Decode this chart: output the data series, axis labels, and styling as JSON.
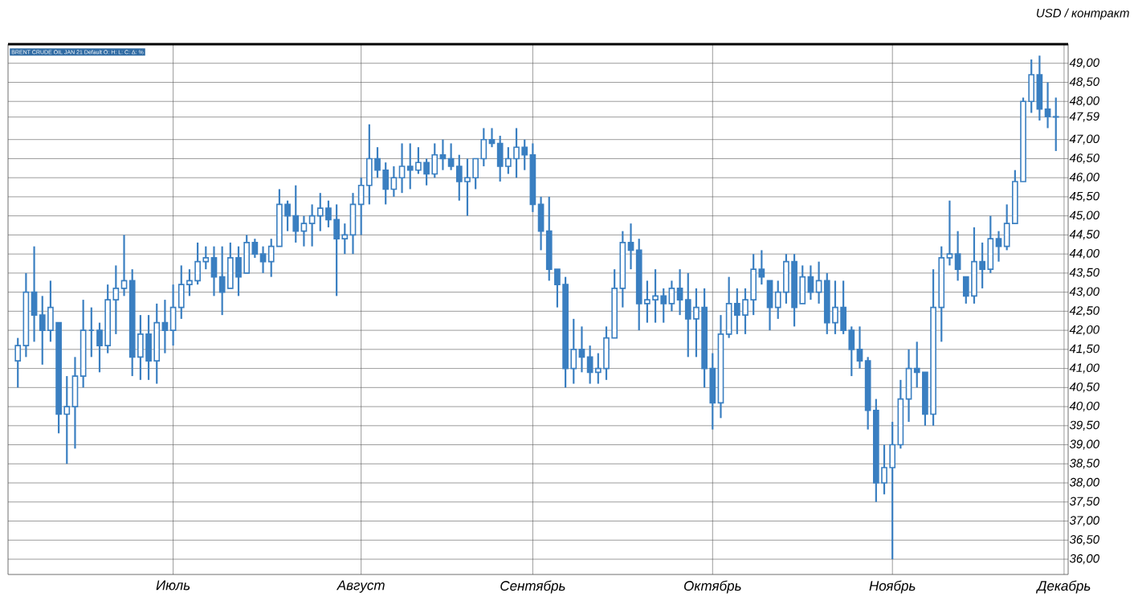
{
  "chart_data": {
    "type": "candlestick",
    "ylabel": "USD / контракт",
    "annotations": [
      "BRENT CRUDE OIL JAN 21 Default O: H: L: C: Δ: %"
    ],
    "color": "#3a7fc1",
    "grid": true,
    "categories": [
      null,
      null,
      null,
      null,
      null,
      null,
      null,
      null,
      null,
      null,
      null,
      null,
      null,
      null,
      null,
      null,
      null,
      null,
      null,
      "Июль",
      null,
      null,
      null,
      null,
      null,
      null,
      null,
      null,
      null,
      null,
      null,
      null,
      null,
      null,
      null,
      null,
      null,
      null,
      null,
      null,
      null,
      null,
      "Август",
      null,
      null,
      null,
      null,
      null,
      null,
      null,
      null,
      null,
      null,
      null,
      null,
      null,
      null,
      null,
      null,
      null,
      null,
      null,
      null,
      "Сентябрь",
      null,
      null,
      null,
      null,
      null,
      null,
      null,
      null,
      null,
      null,
      null,
      null,
      null,
      null,
      null,
      null,
      null,
      null,
      null,
      null,
      null,
      "Октябрь",
      null,
      null,
      null,
      null,
      null,
      null,
      null,
      null,
      null,
      null,
      null,
      null,
      null,
      null,
      null,
      null,
      null,
      null,
      null,
      null,
      null,
      "Ноябрь",
      null,
      null,
      null,
      null,
      null,
      null,
      null,
      null,
      null,
      null,
      null,
      null,
      null,
      null,
      null,
      null,
      null,
      null,
      null,
      null,
      "Декабрь"
    ],
    "ylim": [
      35.6,
      49.5
    ],
    "yticks": [
      {
        "value": 36,
        "label": "36,00"
      },
      {
        "value": 36.5,
        "label": "36,50"
      },
      {
        "value": 37,
        "label": "37,00"
      },
      {
        "value": 37.5,
        "label": "37,50"
      },
      {
        "value": 38,
        "label": "38,00"
      },
      {
        "value": 38.5,
        "label": "38,50"
      },
      {
        "value": 39,
        "label": "39,00"
      },
      {
        "value": 39.5,
        "label": "39,50"
      },
      {
        "value": 40,
        "label": "40,00"
      },
      {
        "value": 40.5,
        "label": "40,50"
      },
      {
        "value": 41,
        "label": "41,00"
      },
      {
        "value": 41.5,
        "label": "41,50"
      },
      {
        "value": 42,
        "label": "42,00"
      },
      {
        "value": 42.5,
        "label": "42,50"
      },
      {
        "value": 43,
        "label": "43,00"
      },
      {
        "value": 43.5,
        "label": "43,50"
      },
      {
        "value": 44,
        "label": "44,00"
      },
      {
        "value": 44.5,
        "label": "44,50"
      },
      {
        "value": 45,
        "label": "45,00"
      },
      {
        "value": 45.5,
        "label": "45,50"
      },
      {
        "value": 46,
        "label": "46,00"
      },
      {
        "value": 46.5,
        "label": "46,50"
      },
      {
        "value": 47,
        "label": "47,00"
      },
      {
        "value": 47.59,
        "label": "47,59"
      },
      {
        "value": 48,
        "label": "48,00"
      },
      {
        "value": 48.5,
        "label": "48,50"
      },
      {
        "value": 49,
        "label": "49,00"
      }
    ],
    "ohlc": [
      [
        41.2,
        41.8,
        40.5,
        41.6
      ],
      [
        41.6,
        43.5,
        41.3,
        43.0
      ],
      [
        43.0,
        44.2,
        41.7,
        42.4
      ],
      [
        42.4,
        42.9,
        41.1,
        42.0
      ],
      [
        42.0,
        43.3,
        41.7,
        42.6
      ],
      [
        42.2,
        42.2,
        39.3,
        39.8
      ],
      [
        39.8,
        40.8,
        38.5,
        40.0
      ],
      [
        40.0,
        41.3,
        38.9,
        40.8
      ],
      [
        40.8,
        42.8,
        40.5,
        42.0
      ],
      [
        42.0,
        42.6,
        41.3,
        42.0
      ],
      [
        42.0,
        42.2,
        40.9,
        41.6
      ],
      [
        41.6,
        43.2,
        41.4,
        42.8
      ],
      [
        42.8,
        43.7,
        41.9,
        43.1
      ],
      [
        43.1,
        44.5,
        42.9,
        43.3
      ],
      [
        43.3,
        43.6,
        40.8,
        41.3
      ],
      [
        41.3,
        42.4,
        40.7,
        41.9
      ],
      [
        41.9,
        42.4,
        40.7,
        41.2
      ],
      [
        41.2,
        42.7,
        40.6,
        42.2
      ],
      [
        42.2,
        42.8,
        41.4,
        42.0
      ],
      [
        42.0,
        43.2,
        41.6,
        42.6
      ],
      [
        42.6,
        43.7,
        42.3,
        43.2
      ],
      [
        43.2,
        43.6,
        42.9,
        43.3
      ],
      [
        43.3,
        44.3,
        43.2,
        43.8
      ],
      [
        43.8,
        44.2,
        43.6,
        43.9
      ],
      [
        43.9,
        44.2,
        42.9,
        43.4
      ],
      [
        43.4,
        44.2,
        42.4,
        43.0
      ],
      [
        43.1,
        44.3,
        43.1,
        43.9
      ],
      [
        43.9,
        44.2,
        42.9,
        43.4
      ],
      [
        43.5,
        44.5,
        43.5,
        44.3
      ],
      [
        44.3,
        44.4,
        43.9,
        44.0
      ],
      [
        44.0,
        44.2,
        43.5,
        43.8
      ],
      [
        43.8,
        44.4,
        43.4,
        44.2
      ],
      [
        44.2,
        45.7,
        44.2,
        45.3
      ],
      [
        45.3,
        45.4,
        44.6,
        45.0
      ],
      [
        45.0,
        45.8,
        44.3,
        44.6
      ],
      [
        44.6,
        45.0,
        44.2,
        44.8
      ],
      [
        44.8,
        45.3,
        44.2,
        45.0
      ],
      [
        45.0,
        45.6,
        44.6,
        45.2
      ],
      [
        45.2,
        45.4,
        44.7,
        44.9
      ],
      [
        44.9,
        45.3,
        42.9,
        44.4
      ],
      [
        44.4,
        44.8,
        44.0,
        44.5
      ],
      [
        44.5,
        45.6,
        44.0,
        45.3
      ],
      [
        45.3,
        46.0,
        44.5,
        45.8
      ],
      [
        45.8,
        47.4,
        45.3,
        46.5
      ],
      [
        46.5,
        46.8,
        46.0,
        46.2
      ],
      [
        46.2,
        46.4,
        45.3,
        45.7
      ],
      [
        45.7,
        46.3,
        45.5,
        46.0
      ],
      [
        46.0,
        46.9,
        45.6,
        46.3
      ],
      [
        46.3,
        46.9,
        45.7,
        46.2
      ],
      [
        46.2,
        46.8,
        46.1,
        46.4
      ],
      [
        46.4,
        46.5,
        45.8,
        46.1
      ],
      [
        46.1,
        46.9,
        46.0,
        46.6
      ],
      [
        46.6,
        47.0,
        46.2,
        46.5
      ],
      [
        46.5,
        46.9,
        46.2,
        46.3
      ],
      [
        46.3,
        46.6,
        45.4,
        45.9
      ],
      [
        45.9,
        46.5,
        45.0,
        46.0
      ],
      [
        46.0,
        46.5,
        45.7,
        46.5
      ],
      [
        46.5,
        47.3,
        46.3,
        47.0
      ],
      [
        47.0,
        47.3,
        46.8,
        46.9
      ],
      [
        46.9,
        47.1,
        45.9,
        46.3
      ],
      [
        46.3,
        46.8,
        46.1,
        46.5
      ],
      [
        46.5,
        47.3,
        46.0,
        46.8
      ],
      [
        46.8,
        47.0,
        46.2,
        46.6
      ],
      [
        46.6,
        46.9,
        45.1,
        45.3
      ],
      [
        45.3,
        45.5,
        44.1,
        44.6
      ],
      [
        44.6,
        45.5,
        43.3,
        43.6
      ],
      [
        43.6,
        43.6,
        42.6,
        43.2
      ],
      [
        43.2,
        43.4,
        40.5,
        41.0
      ],
      [
        41.0,
        42.3,
        40.6,
        41.5
      ],
      [
        41.5,
        42.1,
        40.9,
        41.3
      ],
      [
        41.3,
        41.6,
        40.6,
        40.9
      ],
      [
        40.9,
        41.4,
        40.6,
        41.0
      ],
      [
        41.0,
        42.1,
        40.7,
        41.8
      ],
      [
        41.8,
        43.6,
        41.8,
        43.1
      ],
      [
        43.1,
        44.6,
        42.6,
        44.3
      ],
      [
        44.3,
        44.8,
        43.6,
        44.1
      ],
      [
        44.1,
        44.4,
        42.0,
        42.7
      ],
      [
        42.7,
        43.3,
        42.2,
        42.8
      ],
      [
        42.8,
        43.6,
        42.2,
        42.9
      ],
      [
        42.9,
        43.1,
        42.2,
        42.7
      ],
      [
        42.7,
        43.3,
        42.5,
        43.1
      ],
      [
        43.1,
        43.6,
        42.4,
        42.8
      ],
      [
        42.8,
        43.5,
        41.3,
        42.3
      ],
      [
        42.3,
        43.1,
        41.3,
        42.6
      ],
      [
        42.6,
        43.1,
        40.5,
        41.0
      ],
      [
        41.0,
        41.4,
        39.4,
        40.1
      ],
      [
        40.1,
        42.4,
        39.7,
        41.9
      ],
      [
        41.9,
        43.4,
        41.8,
        42.7
      ],
      [
        42.7,
        43.1,
        41.9,
        42.4
      ],
      [
        42.4,
        43.1,
        41.9,
        42.8
      ],
      [
        42.8,
        44.0,
        42.4,
        43.6
      ],
      [
        43.6,
        44.1,
        43.2,
        43.4
      ],
      [
        43.3,
        43.3,
        42.0,
        42.6
      ],
      [
        42.6,
        43.3,
        42.3,
        43.0
      ],
      [
        43.0,
        44.0,
        42.7,
        43.8
      ],
      [
        43.8,
        44.0,
        42.1,
        42.6
      ],
      [
        42.7,
        43.7,
        42.7,
        43.4
      ],
      [
        43.4,
        43.7,
        42.8,
        43.0
      ],
      [
        43.0,
        43.8,
        42.7,
        43.3
      ],
      [
        43.3,
        43.5,
        41.9,
        42.2
      ],
      [
        42.2,
        43.3,
        41.9,
        42.6
      ],
      [
        42.6,
        43.3,
        41.9,
        42.0
      ],
      [
        42.0,
        42.1,
        40.8,
        41.5
      ],
      [
        41.5,
        42.1,
        41.0,
        41.2
      ],
      [
        41.2,
        41.3,
        39.4,
        39.9
      ],
      [
        39.9,
        40.2,
        37.5,
        38.0
      ],
      [
        38.0,
        39.0,
        37.7,
        38.4
      ],
      [
        38.4,
        39.6,
        36.0,
        39.0
      ],
      [
        39.0,
        40.7,
        38.9,
        40.2
      ],
      [
        40.2,
        41.5,
        39.6,
        41.0
      ],
      [
        41.0,
        41.7,
        40.5,
        40.9
      ],
      [
        40.9,
        40.9,
        39.5,
        39.8
      ],
      [
        39.8,
        43.6,
        39.5,
        42.6
      ],
      [
        42.6,
        44.2,
        41.7,
        43.9
      ],
      [
        43.9,
        45.4,
        43.7,
        44.0
      ],
      [
        44.0,
        44.6,
        43.3,
        43.6
      ],
      [
        43.4,
        43.4,
        42.7,
        42.9
      ],
      [
        42.9,
        44.7,
        42.7,
        43.8
      ],
      [
        43.8,
        44.3,
        43.1,
        43.6
      ],
      [
        43.6,
        45.0,
        43.5,
        44.4
      ],
      [
        44.4,
        44.6,
        43.8,
        44.2
      ],
      [
        44.2,
        45.3,
        44.1,
        44.8
      ],
      [
        44.8,
        46.2,
        44.8,
        45.9
      ],
      [
        45.9,
        48.1,
        45.9,
        48.0
      ],
      [
        48.0,
        49.1,
        47.7,
        48.7
      ],
      [
        48.7,
        49.2,
        47.5,
        47.8
      ],
      [
        47.8,
        48.5,
        47.3,
        47.6
      ],
      [
        47.6,
        48.1,
        46.7,
        47.59
      ],
      null
    ]
  }
}
